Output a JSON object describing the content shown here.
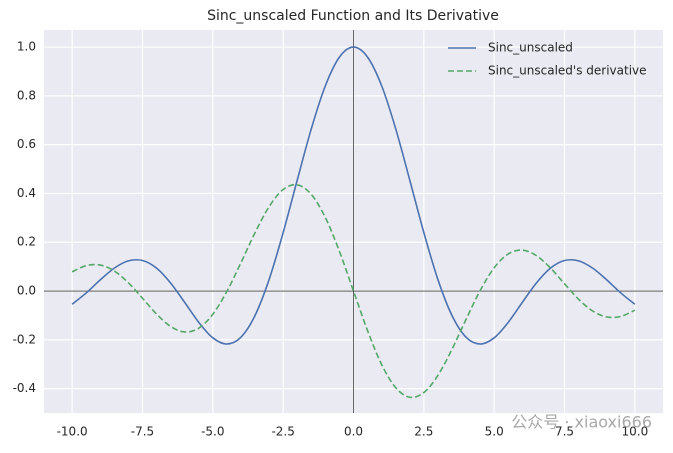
{
  "chart_data": {
    "type": "line",
    "title": "Sinc_unscaled Function and Its Derivative",
    "x": [
      -10,
      -9.5,
      -9,
      -8.5,
      -8,
      -7.5,
      -7,
      -6.5,
      -6,
      -5.5,
      -5,
      -4.5,
      -4,
      -3.5,
      -3,
      -2.5,
      -2,
      -1.5,
      -1,
      -0.5,
      0,
      0.5,
      1,
      1.5,
      2,
      2.5,
      3,
      3.5,
      4,
      4.5,
      5,
      5.5,
      6,
      6.5,
      7,
      7.5,
      8,
      8.5,
      9,
      9.5,
      10
    ],
    "series": [
      {
        "name": "Sinc_unscaled",
        "color": "#4c72b0",
        "linestyle": "solid",
        "values": [
          -0.0544,
          -0.0079,
          0.0458,
          0.0939,
          0.1237,
          0.1251,
          0.0939,
          0.0331,
          -0.0466,
          -0.1283,
          -0.1918,
          -0.2172,
          -0.1892,
          -0.1002,
          0.047,
          0.2394,
          0.4546,
          0.665,
          0.8415,
          0.9589,
          1,
          0.9589,
          0.8415,
          0.665,
          0.4546,
          0.2394,
          0.047,
          -0.1002,
          -0.1892,
          -0.2172,
          -0.1918,
          -0.1283,
          -0.0466,
          0.0331,
          0.0939,
          0.1251,
          0.1237,
          0.0939,
          0.0458,
          -0.0079,
          -0.0544
        ]
      },
      {
        "name": "Sinc_unscaled's derivative",
        "color": "#55a868",
        "linestyle": "dashed",
        "values": [
          0.0785,
          0.1042,
          0.1063,
          0.0819,
          0.0337,
          -0.0295,
          -0.0943,
          -0.1451,
          -0.1678,
          -0.1522,
          -0.0951,
          -0.0015,
          0.1161,
          0.2389,
          0.3457,
          0.4162,
          0.4354,
          0.3961,
          0.3012,
          0.1625,
          0,
          -0.1625,
          -0.3012,
          -0.3961,
          -0.4354,
          -0.4162,
          -0.3457,
          -0.2389,
          -0.1161,
          0.0015,
          0.0951,
          0.1522,
          0.1678,
          0.1451,
          0.0943,
          0.0295,
          -0.0337,
          -0.0819,
          -0.1063,
          -0.1042,
          -0.0785
        ]
      }
    ],
    "xlim": [
      -11,
      11
    ],
    "ylim": [
      -0.5,
      1.07
    ],
    "xticks": [
      {
        "value": -10,
        "label": "-10.0"
      },
      {
        "value": -7.5,
        "label": "-7.5"
      },
      {
        "value": -5,
        "label": "-5.0"
      },
      {
        "value": -2.5,
        "label": "-2.5"
      },
      {
        "value": 0,
        "label": "0.0"
      },
      {
        "value": 2.5,
        "label": "2.5"
      },
      {
        "value": 5,
        "label": "5.0"
      },
      {
        "value": 7.5,
        "label": "7.5"
      },
      {
        "value": 10,
        "label": "10.0"
      }
    ],
    "yticks": [
      -0.4,
      -0.2,
      {
        "value": 0,
        "label": "0.0"
      },
      0.2,
      0.4,
      0.6,
      0.8,
      {
        "value": 1,
        "label": "1.0"
      }
    ],
    "grid": true,
    "legend": "upper right",
    "watermark": "公众号 · xiaoxi666"
  }
}
